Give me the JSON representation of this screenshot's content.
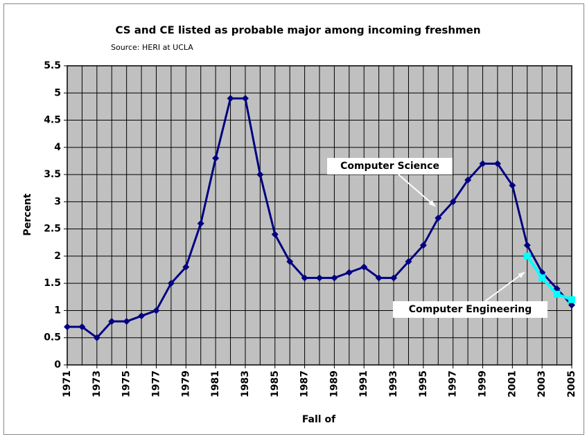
{
  "chart_data": {
    "type": "line",
    "title": "CS and CE listed as probable major among incoming freshmen",
    "subtitle": "Source: HERI at UCLA",
    "xlabel": "Fall of",
    "ylabel": "Percent",
    "x": [
      1971,
      1972,
      1973,
      1974,
      1975,
      1976,
      1977,
      1978,
      1979,
      1980,
      1981,
      1982,
      1983,
      1984,
      1985,
      1986,
      1987,
      1988,
      1989,
      1990,
      1991,
      1992,
      1993,
      1994,
      1995,
      1996,
      1997,
      1998,
      1999,
      2000,
      2001,
      2002,
      2003,
      2004,
      2005
    ],
    "series": [
      {
        "name": "Computer Science",
        "color": "#000080",
        "values": [
          0.7,
          0.7,
          0.5,
          0.8,
          0.8,
          0.9,
          1.0,
          1.5,
          1.8,
          2.6,
          3.8,
          4.9,
          4.9,
          3.5,
          2.4,
          1.9,
          1.6,
          1.6,
          1.6,
          1.7,
          1.8,
          1.6,
          1.6,
          1.9,
          2.2,
          2.7,
          3.0,
          3.4,
          3.7,
          3.7,
          3.3,
          2.2,
          1.7,
          1.4,
          1.1
        ]
      },
      {
        "name": "Computer Engineering",
        "color": "#00ffff",
        "values": [
          null,
          null,
          null,
          null,
          null,
          null,
          null,
          null,
          null,
          null,
          null,
          null,
          null,
          null,
          null,
          null,
          null,
          null,
          null,
          null,
          null,
          null,
          null,
          null,
          null,
          null,
          null,
          null,
          null,
          null,
          null,
          2.0,
          1.6,
          1.3,
          1.2
        ]
      }
    ],
    "xlim": [
      1971,
      2005
    ],
    "xticks": [
      1971,
      1973,
      1975,
      1977,
      1979,
      1981,
      1983,
      1985,
      1987,
      1989,
      1991,
      1993,
      1995,
      1997,
      1999,
      2001,
      2003,
      2005
    ],
    "ylim": [
      0,
      5.5
    ],
    "yticks": [
      0,
      0.5,
      1,
      1.5,
      2,
      2.5,
      3,
      3.5,
      4,
      4.5,
      5,
      5.5
    ],
    "grid": true
  }
}
